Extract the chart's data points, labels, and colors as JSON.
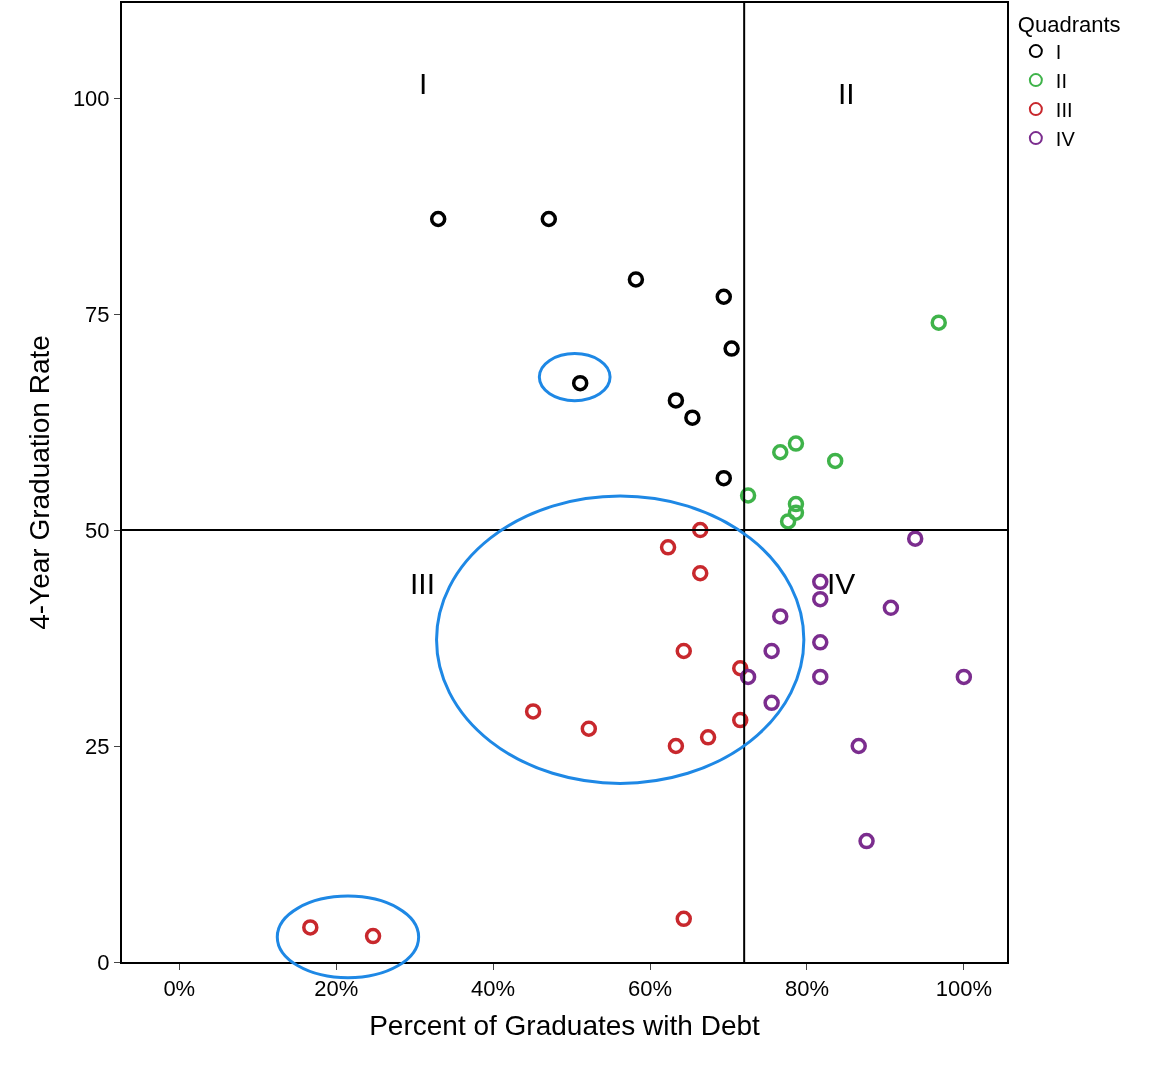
{
  "chart_data": {
    "type": "scatter",
    "xlabel": "Percent of Graduates with Debt",
    "ylabel": "4-Year Graduation Rate",
    "legend_title": "Quadrants",
    "legend": "top right",
    "marker": "circle",
    "grid": false,
    "xlim": [
      -7.3,
      105.5
    ],
    "ylim": [
      0,
      111
    ],
    "xticks": [
      {
        "value": 0,
        "label": "0%"
      },
      {
        "value": 20,
        "label": "20%"
      },
      {
        "value": 40,
        "label": "40%"
      },
      {
        "value": 60,
        "label": "60%"
      },
      {
        "value": 80,
        "label": "80%"
      },
      {
        "value": 100,
        "label": "100%"
      }
    ],
    "yticks": [
      0,
      25,
      50,
      75,
      100
    ],
    "series": [
      {
        "name": "I",
        "color": "#000000",
        "x": [
          33,
          47.1,
          58.2,
          69.4,
          70.4,
          51.1,
          63.3,
          65.4,
          69.4
        ],
        "values": [
          86,
          86,
          79,
          77,
          71,
          67,
          65,
          63,
          56
        ]
      },
      {
        "name": "II",
        "color": "#3fb34a",
        "x": [
          96.8,
          76.6,
          78.6,
          83.6,
          72.5,
          78.6,
          78.6,
          77.6
        ],
        "values": [
          74,
          59,
          60,
          58,
          54,
          53,
          52,
          51
        ]
      },
      {
        "name": "III",
        "color": "#c8282d",
        "x": [
          66.4,
          62.3,
          66.4,
          64.3,
          71.5,
          45.1,
          52.2,
          63.3,
          67.4,
          71.5,
          16.7,
          24.7,
          64.3
        ],
        "values": [
          50,
          48,
          45,
          36,
          34,
          29,
          27,
          25,
          26,
          28,
          4,
          3,
          5
        ]
      },
      {
        "name": "IV",
        "color": "#7b2d8e",
        "x": [
          93.8,
          81.7,
          81.7,
          90.7,
          76.6,
          81.7,
          75.5,
          72.5,
          81.7,
          100,
          75.5,
          86.6,
          87.6
        ],
        "values": [
          49,
          44,
          42,
          41,
          40,
          37,
          36,
          33,
          33,
          33,
          30,
          25,
          14
        ]
      }
    ],
    "ref_lines": [
      {
        "axis": "x",
        "value": 72,
        "color": "#000000"
      },
      {
        "axis": "y",
        "value": 50,
        "color": "#000000"
      }
    ],
    "annotations": [
      "I",
      "II",
      "III",
      "IV"
    ]
  }
}
